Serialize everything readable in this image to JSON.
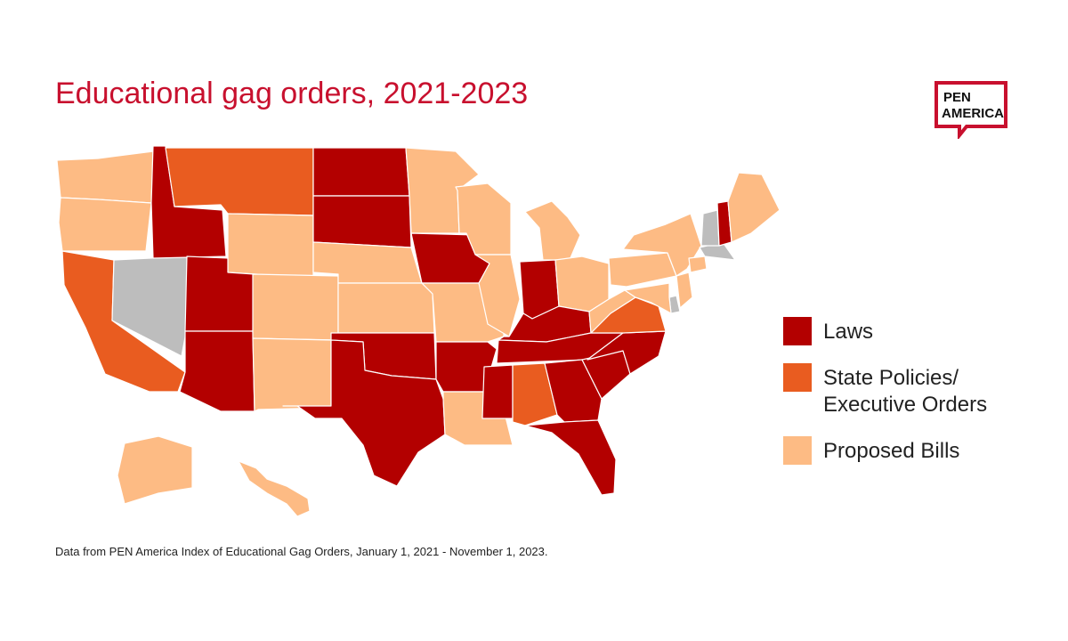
{
  "title": "Educational gag orders, 2021-2023",
  "logo": {
    "line1": "PEN",
    "line2": "AMERICA",
    "color": "#c8102e"
  },
  "legend": [
    {
      "label": "Laws",
      "color": "#b30000"
    },
    {
      "label": "State Policies/",
      "label2": "Executive Orders",
      "color": "#e95c20"
    },
    {
      "label": "Proposed Bills",
      "color": "#fdbb84"
    }
  ],
  "no_action_color": "#bdbdbd",
  "footnote": "Data from PEN America Index of Educational Gag Orders, January 1, 2021 - November 1, 2023.",
  "states": {
    "laws": [
      "ID",
      "UT",
      "AZ",
      "ND",
      "SD",
      "OK",
      "TX",
      "IA",
      "AR",
      "MS",
      "TN",
      "KY",
      "IN",
      "GA",
      "SC",
      "NC",
      "FL",
      "NH"
    ],
    "state_policies_executive_orders": [
      "MT",
      "CA",
      "VA",
      "AL"
    ],
    "proposed_bills": [
      "WA",
      "OR",
      "WY",
      "CO",
      "NM",
      "NE",
      "KS",
      "MN",
      "WI",
      "MO",
      "IL",
      "LA",
      "MI",
      "OH",
      "WV",
      "PA",
      "NY",
      "ME",
      "NJ",
      "MD",
      "CT",
      "AK",
      "HI"
    ],
    "none": [
      "NV",
      "VT",
      "MA",
      "DE"
    ]
  }
}
